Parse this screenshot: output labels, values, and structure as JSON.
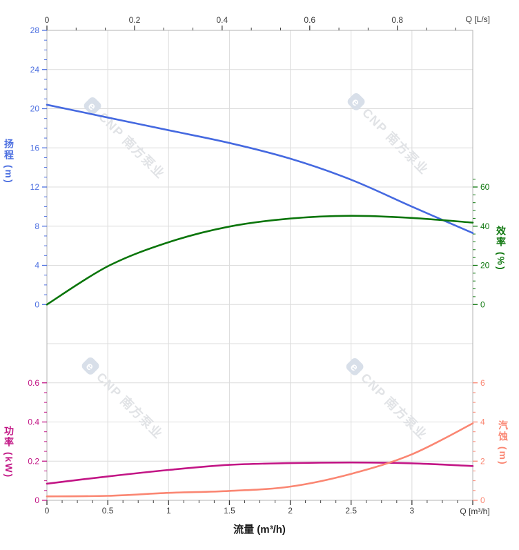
{
  "watermark": {
    "logo_letter": "e",
    "text": "CNP 南方泵业",
    "text_color": "#e1e3e6",
    "logo_color": "#d8dfe9"
  },
  "labels": {
    "head": "扬程 (m)",
    "eff": "效率 (%)",
    "power": "功率 (kW)",
    "npsh": "汽蚀 (m)",
    "flow": "流量 (m³/h)",
    "q_ls": "Q [L/s]",
    "q_m3h": "Q [m³/h]"
  },
  "chart_data": {
    "type": "line",
    "title": "",
    "grid": true,
    "grid_color": "#dcdcdc",
    "frame_color": "#b3b3b3",
    "background": "#ffffff",
    "x_axis_bottom": {
      "title": "流量 (m³/h)",
      "corner_label": "Q [m³/h]",
      "unit": "m³/h",
      "range": [
        0,
        3.5
      ],
      "major_ticks": [
        0,
        0.5,
        1,
        1.5,
        2,
        2.5,
        3
      ],
      "minor_step": 0.125,
      "minor_max": 3.5,
      "color": "#3c3c3c"
    },
    "x_axis_top": {
      "corner_label": "Q [L/s]",
      "unit": "L/s",
      "range": [
        0,
        0.9722
      ],
      "major_ticks": [
        0,
        0.2,
        0.4,
        0.6,
        0.8
      ],
      "minor_step": 0.0666667,
      "minor_max": 0.95,
      "color": "#3c3c3c"
    },
    "y_axes": [
      {
        "key": "head",
        "title": "扬程 (m)",
        "side": "left",
        "color": "#4c6fe0",
        "major_ticks": [
          0,
          4,
          8,
          12,
          16,
          20,
          24,
          28
        ],
        "units_per_row": 4,
        "zero_row": 7,
        "minor_step": 1,
        "minor_max": 28
      },
      {
        "key": "eff",
        "title": "效率 (%)",
        "side": "right",
        "color": "#0d760d",
        "major_ticks": [
          0,
          20,
          40,
          60
        ],
        "units_per_row": 20,
        "zero_row": 7,
        "minor_step": 4,
        "minor_max": 64
      },
      {
        "key": "power",
        "title": "功率 (kW)",
        "side": "left",
        "color": "#c21585",
        "major_ticks": [
          0,
          0.2,
          0.4,
          0.6
        ],
        "units_per_row": 0.2,
        "zero_row": 12,
        "minor_step": 0.05,
        "minor_max": 0.6
      },
      {
        "key": "npsh",
        "title": "汽蚀 (m)",
        "side": "right",
        "color": "#fa8672",
        "major_ticks": [
          0,
          2,
          4,
          6
        ],
        "units_per_row": 2,
        "zero_row": 12,
        "minor_step": 0.5,
        "minor_max": 6
      }
    ],
    "series": [
      {
        "key": "head",
        "name": "扬程",
        "axis": "head",
        "color": "#4569e0",
        "x": [
          0,
          0.5,
          1,
          1.5,
          2,
          2.5,
          3,
          3.5
        ],
        "values": [
          20.4,
          19.1,
          17.8,
          16.5,
          14.9,
          12.75,
          10.0,
          7.3
        ]
      },
      {
        "key": "efficiency",
        "name": "效率",
        "axis": "eff",
        "color": "#0a750a",
        "x": [
          0,
          0.5,
          1,
          1.5,
          2,
          2.5,
          3,
          3.5
        ],
        "values": [
          0,
          19.5,
          31.8,
          39.8,
          43.9,
          45.3,
          44.2,
          41.8
        ]
      },
      {
        "key": "power",
        "name": "功率",
        "axis": "power",
        "color": "#c21585",
        "x": [
          0,
          0.5,
          1,
          1.5,
          2,
          2.5,
          3,
          3.5
        ],
        "values": [
          0.085,
          0.122,
          0.155,
          0.181,
          0.19,
          0.193,
          0.189,
          0.175
        ]
      },
      {
        "key": "npsh",
        "name": "汽蚀",
        "axis": "npsh",
        "color": "#fa8672",
        "x": [
          0,
          0.5,
          1,
          1.5,
          2,
          2.5,
          3,
          3.5
        ],
        "values": [
          0.2,
          0.23,
          0.38,
          0.48,
          0.7,
          1.35,
          2.35,
          3.93
        ]
      }
    ]
  }
}
